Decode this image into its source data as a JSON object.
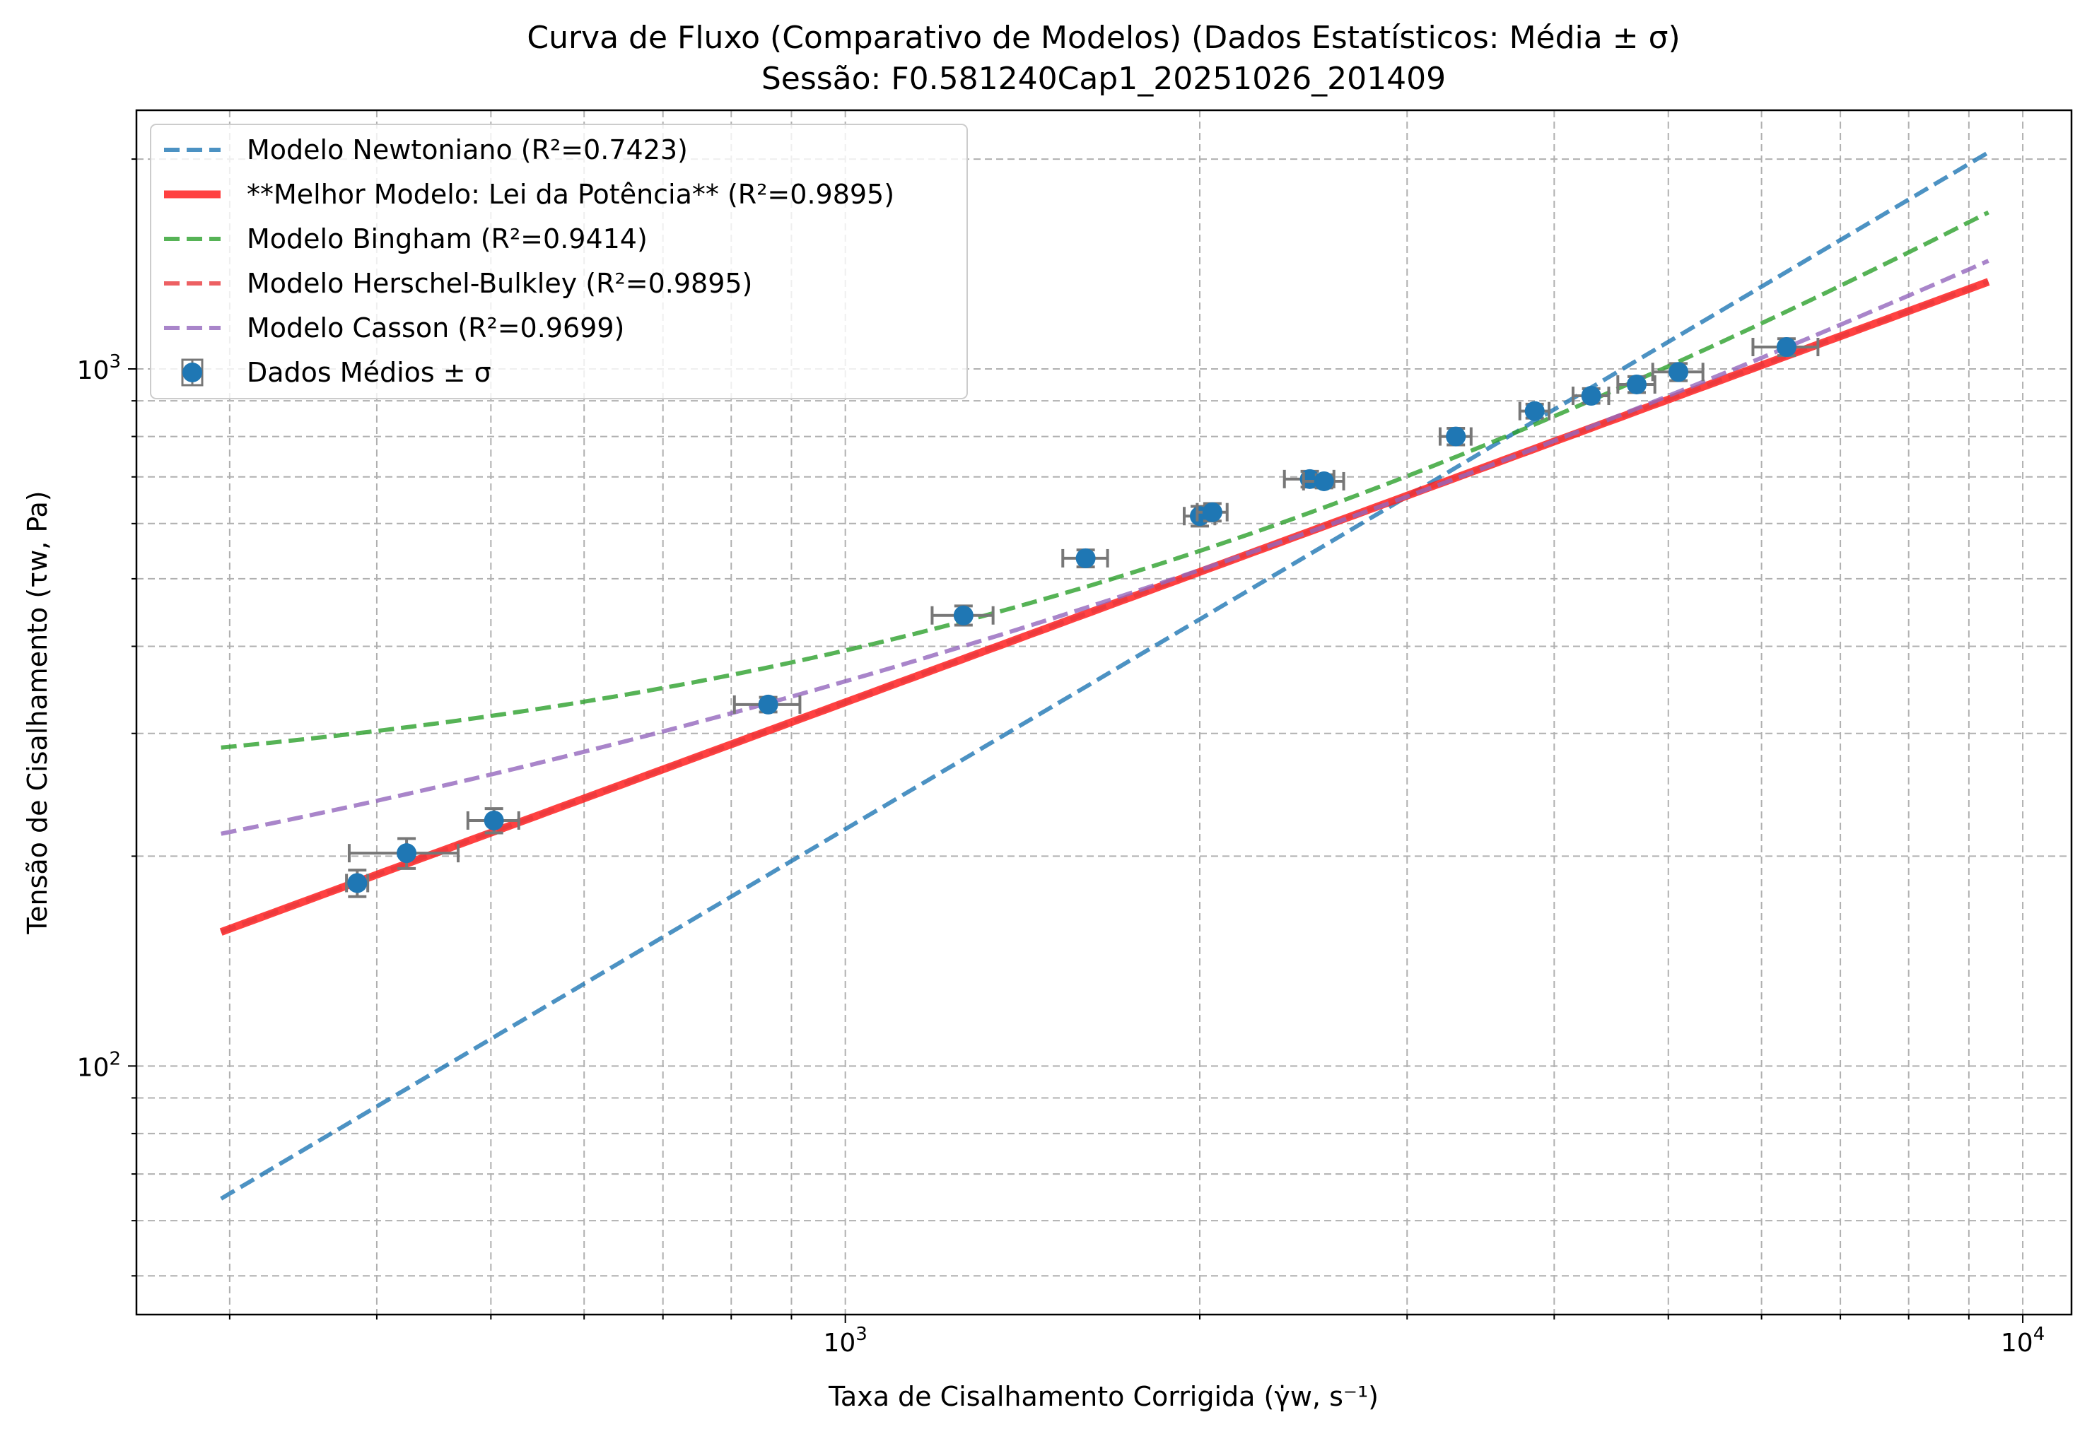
{
  "chart_data": {
    "type": "scatter",
    "title": "Curva de Fluxo (Comparativo de Modelos) (Dados Estatísticos: Média ± σ)",
    "subtitle": "Sessão: F0.581240Cap1_20251026_201409",
    "xlabel": "Taxa de Cisalhamento Corrigida (γ̇w, s⁻¹)",
    "ylabel": "Tensão de Cisalhamento (τw, Pa)",
    "xscale": "log",
    "yscale": "log",
    "xlim": [
      250,
      11000
    ],
    "ylim": [
      44,
      2350
    ],
    "grid": true,
    "legend_position": "top-left",
    "x_tick_labels": [
      {
        "value": 1000,
        "base": "10",
        "exp": "3"
      },
      {
        "value": 10000,
        "base": "10",
        "exp": "4"
      }
    ],
    "y_tick_labels": [
      {
        "value": 100,
        "base": "10",
        "exp": "2"
      },
      {
        "value": 1000,
        "base": "10",
        "exp": "3"
      }
    ],
    "series": [
      {
        "name": "Modelo Newtoniano (R²=0.7423)",
        "kind": "line",
        "style": "dashed",
        "color": "#1f77b4",
        "model": "power",
        "k": 0.2187,
        "n": 1.0,
        "xrange": [
          295,
          9350
        ]
      },
      {
        "name": "**Melhor Modelo: Lei da Potência** (R²=0.9895)",
        "kind": "line",
        "style": "solid",
        "color": "#ff2020",
        "model": "power",
        "k": 4.545,
        "n": 0.6214,
        "xrange": [
          295,
          9350
        ]
      },
      {
        "name": "Modelo Bingham (R²=0.9414)",
        "kind": "line",
        "style": "dashed",
        "color": "#2ca02c",
        "model": "bingham",
        "tau0": 241.0,
        "mu": 0.1536,
        "xrange": [
          295,
          9350
        ]
      },
      {
        "name": "Modelo Herschel-Bulkley (R²=0.9895)",
        "kind": "line",
        "style": "dashed",
        "color": "#e8383c",
        "model": "power",
        "k": 4.545,
        "n": 0.6214,
        "xrange": [
          295,
          9350
        ]
      },
      {
        "name": "Modelo Casson (R²=0.9699)",
        "kind": "line",
        "style": "dashed",
        "color": "#9467bd",
        "model": "casson",
        "tau0": 93.7,
        "eta": 0.0846,
        "xrange": [
          295,
          9350
        ]
      },
      {
        "name": "Dados Médios ± σ",
        "kind": "errorbar",
        "color": "#1f77b4",
        "points": [
          {
            "x": 385,
            "y": 183,
            "xerr": 8,
            "yerr": 8
          },
          {
            "x": 424,
            "y": 202,
            "xerr": 45,
            "yerr": 10
          },
          {
            "x": 503,
            "y": 225,
            "xerr": 25,
            "yerr": 9
          },
          {
            "x": 860,
            "y": 330,
            "xerr": 55,
            "yerr": 8
          },
          {
            "x": 1260,
            "y": 443,
            "xerr": 75,
            "yerr": 14
          },
          {
            "x": 1600,
            "y": 535,
            "xerr": 70,
            "yerr": 15
          },
          {
            "x": 2000,
            "y": 615,
            "xerr": 60,
            "yerr": 20
          },
          {
            "x": 2050,
            "y": 623,
            "xerr": 60,
            "yerr": 18
          },
          {
            "x": 2480,
            "y": 695,
            "xerr": 120,
            "yerr": 18
          },
          {
            "x": 2550,
            "y": 690,
            "xerr": 100,
            "yerr": 15
          },
          {
            "x": 3300,
            "y": 800,
            "xerr": 100,
            "yerr": 22
          },
          {
            "x": 3850,
            "y": 870,
            "xerr": 110,
            "yerr": 20
          },
          {
            "x": 4300,
            "y": 915,
            "xerr": 150,
            "yerr": 22
          },
          {
            "x": 4700,
            "y": 950,
            "xerr": 170,
            "yerr": 25
          },
          {
            "x": 5100,
            "y": 990,
            "xerr": 250,
            "yerr": 28
          },
          {
            "x": 6300,
            "y": 1075,
            "xerr": 400,
            "yerr": 30
          }
        ]
      }
    ]
  }
}
